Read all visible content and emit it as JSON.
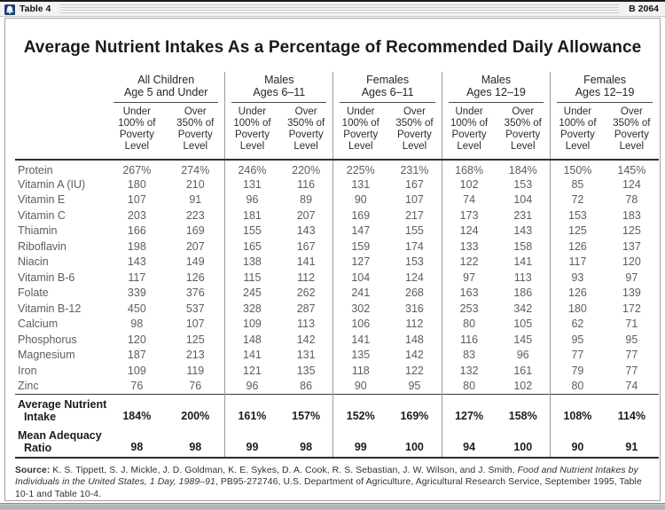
{
  "header_bar": {
    "left_label": "Table 4",
    "right_label": "B 2064",
    "icon_color": "#1e4276"
  },
  "title": "Average Nutrient Intakes As a Percentage of Recommended Daily Allowance",
  "table": {
    "groups": [
      {
        "label": "All Children\nAge 5 and Under"
      },
      {
        "label": "Males\nAges 6–11"
      },
      {
        "label": "Females\nAges 6–11"
      },
      {
        "label": "Males\nAges 12–19"
      },
      {
        "label": "Females\nAges 12–19"
      }
    ],
    "sub_headers": {
      "under": "Under\n100% of\nPoverty\nLevel",
      "over": "Over\n350% of\nPoverty\nLevel"
    },
    "rows": [
      {
        "label": "Protein",
        "values": [
          "267%",
          "274%",
          "246%",
          "220%",
          "225%",
          "231%",
          "168%",
          "184%",
          "150%",
          "145%"
        ]
      },
      {
        "label": "Vitamin A (IU)",
        "values": [
          "180",
          "210",
          "131",
          "116",
          "131",
          "167",
          "102",
          "153",
          "85",
          "124"
        ]
      },
      {
        "label": "Vitamin E",
        "values": [
          "107",
          "91",
          "96",
          "89",
          "90",
          "107",
          "74",
          "104",
          "72",
          "78"
        ]
      },
      {
        "label": "Vitamin C",
        "values": [
          "203",
          "223",
          "181",
          "207",
          "169",
          "217",
          "173",
          "231",
          "153",
          "183"
        ]
      },
      {
        "label": "Thiamin",
        "values": [
          "166",
          "169",
          "155",
          "143",
          "147",
          "155",
          "124",
          "143",
          "125",
          "125"
        ]
      },
      {
        "label": "Riboflavin",
        "values": [
          "198",
          "207",
          "165",
          "167",
          "159",
          "174",
          "133",
          "158",
          "126",
          "137"
        ]
      },
      {
        "label": "Niacin",
        "values": [
          "143",
          "149",
          "138",
          "141",
          "127",
          "153",
          "122",
          "141",
          "117",
          "120"
        ]
      },
      {
        "label": "Vitamin B-6",
        "values": [
          "117",
          "126",
          "115",
          "112",
          "104",
          "124",
          "97",
          "113",
          "93",
          "97"
        ]
      },
      {
        "label": "Folate",
        "values": [
          "339",
          "376",
          "245",
          "262",
          "241",
          "268",
          "163",
          "186",
          "126",
          "139"
        ]
      },
      {
        "label": "Vitamin B-12",
        "values": [
          "450",
          "537",
          "328",
          "287",
          "302",
          "316",
          "253",
          "342",
          "180",
          "172"
        ]
      },
      {
        "label": "Calcium",
        "values": [
          "98",
          "107",
          "109",
          "113",
          "106",
          "112",
          "80",
          "105",
          "62",
          "71"
        ]
      },
      {
        "label": "Phosphorus",
        "values": [
          "120",
          "125",
          "148",
          "142",
          "141",
          "148",
          "116",
          "145",
          "95",
          "95"
        ]
      },
      {
        "label": "Magnesium",
        "values": [
          "187",
          "213",
          "141",
          "131",
          "135",
          "142",
          "83",
          "96",
          "77",
          "77"
        ]
      },
      {
        "label": "Iron",
        "values": [
          "109",
          "119",
          "121",
          "135",
          "118",
          "122",
          "132",
          "161",
          "79",
          "77"
        ]
      },
      {
        "label": "Zinc",
        "values": [
          "76",
          "76",
          "96",
          "86",
          "90",
          "95",
          "80",
          "102",
          "80",
          "74"
        ]
      }
    ],
    "summary_rows": [
      {
        "label": "Average Nutrient\n  Intake",
        "values": [
          "184%",
          "200%",
          "161%",
          "157%",
          "152%",
          "169%",
          "127%",
          "158%",
          "108%",
          "114%"
        ]
      },
      {
        "label": "Mean Adequacy\n  Ratio",
        "values": [
          "98",
          "98",
          "99",
          "98",
          "99",
          "100",
          "94",
          "100",
          "90",
          "91"
        ]
      }
    ]
  },
  "source": {
    "label": "Source:",
    "text_before_italic": " K. S. Tippett, S. J. Mickle, J. D. Goldman, K. E. Sykes, D. A. Cook, R. S. Sebastian, J. W. Wilson, and J. Smith, ",
    "italic": "Food and Nutrient Intakes by Individuals in the United States, 1 Day, 1989–91",
    "text_after_italic": ", PB95-272746, U.S. Department of Agriculture, Agricultural Research Service, September 1995, Table 10-1 and Table 10-4."
  }
}
